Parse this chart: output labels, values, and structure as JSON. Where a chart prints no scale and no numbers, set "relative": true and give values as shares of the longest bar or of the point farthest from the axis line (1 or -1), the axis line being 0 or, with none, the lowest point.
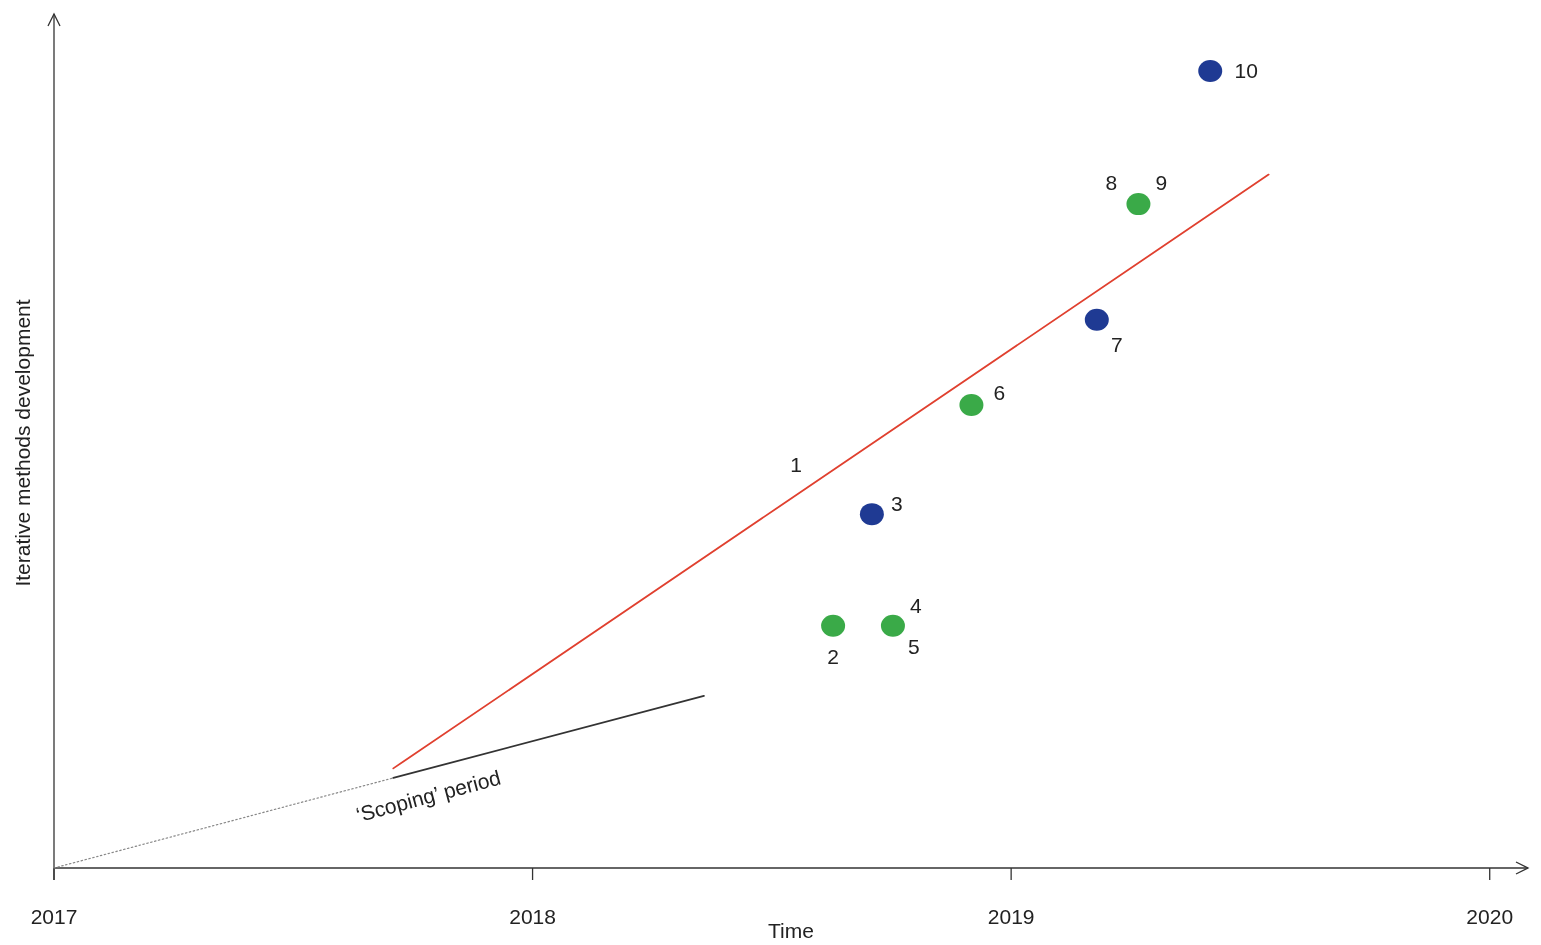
{
  "chart_data": {
    "type": "scatter",
    "xlabel": "Time",
    "ylabel": "Iterative methods development",
    "relative": true,
    "xlim": [
      2017,
      2020.08
    ],
    "xticks": [
      2017,
      2018,
      2019,
      2020
    ],
    "legend": false,
    "grid": false,
    "series": [
      {
        "color": "#3aaa48",
        "marker": "circle",
        "x": [
          2018.628,
          2018.753,
          2018.917,
          2019.266
        ],
        "values": [
          0.304,
          0.304,
          0.581,
          0.833
        ]
      },
      {
        "color": "#1f3a93",
        "marker": "circle",
        "x": [
          2018.709,
          2019.179,
          2019.416
        ],
        "values": [
          0.444,
          0.688,
          1
        ]
      },
      {
        "type": "line",
        "color": "#e0402f",
        "marker": "none",
        "line_style": "solid",
        "x": [
          2017.709,
          2019.538
        ],
        "values": [
          0.125,
          0.87
        ]
      },
      {
        "type": "line",
        "color": "#888888",
        "marker": "none",
        "line_style": "dotted",
        "x": [
          2017,
          2017.709
        ],
        "values": [
          0,
          0.113
        ]
      },
      {
        "type": "line",
        "color": "#333333",
        "marker": "none",
        "line_style": "solid",
        "x": [
          2017.709,
          2018.358
        ],
        "values": [
          0.113,
          0.216
        ]
      }
    ],
    "annotations": [
      {
        "text": "1",
        "x": 2018.561,
        "y": 0.472
      },
      {
        "text": "2",
        "x": 2018.628,
        "y": 0.304
      },
      {
        "text": "3",
        "x": 2018.709,
        "y": 0.444
      },
      {
        "text": "4",
        "x": 2018.753,
        "y": 0.304
      },
      {
        "text": "5",
        "x": 2018.753,
        "y": 0.304
      },
      {
        "text": "6",
        "x": 2018.917,
        "y": 0.581
      },
      {
        "text": "7",
        "x": 2019.179,
        "y": 0.688
      },
      {
        "text": "8",
        "x": 2019.266,
        "y": 0.833
      },
      {
        "text": "9",
        "x": 2019.266,
        "y": 0.833
      },
      {
        "text": "10",
        "x": 2019.416,
        "y": 1
      },
      {
        "text": "‘Scoping’ period",
        "x": 2017.709,
        "y": 0.113
      }
    ]
  }
}
